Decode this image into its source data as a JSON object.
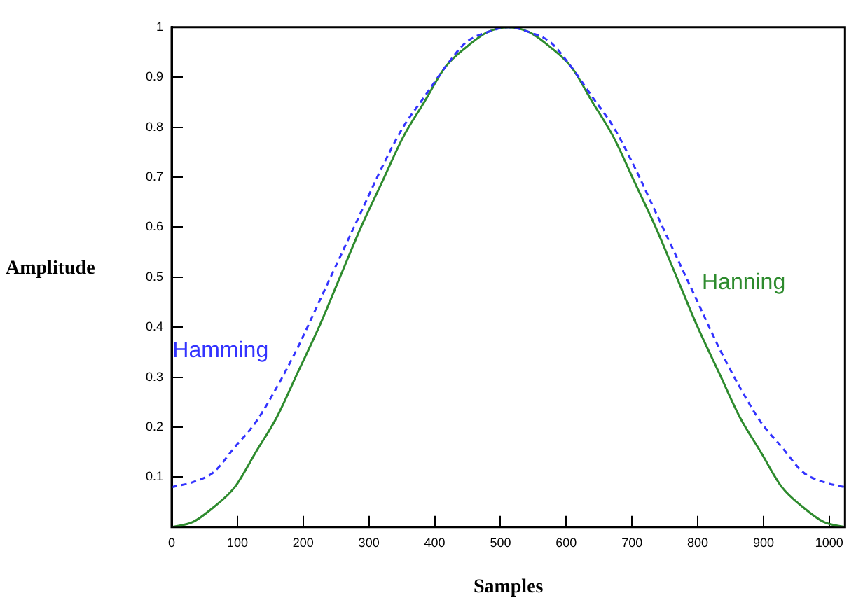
{
  "chart_data": {
    "type": "line",
    "xlabel": "Samples",
    "ylabel": "Amplitude",
    "x": [
      0,
      32,
      64,
      96,
      128,
      160,
      192,
      224,
      256,
      288,
      320,
      352,
      384,
      416,
      448,
      480,
      512,
      544,
      576,
      608,
      640,
      672,
      704,
      736,
      768,
      800,
      832,
      864,
      896,
      928,
      960,
      992,
      1024
    ],
    "series": [
      {
        "name": "Hamming",
        "color": "#3333ff",
        "line_style": "dashed",
        "values": [
          0.08,
          0.09,
          0.11,
          0.16,
          0.21,
          0.28,
          0.36,
          0.45,
          0.54,
          0.63,
          0.72,
          0.8,
          0.86,
          0.92,
          0.97,
          0.99,
          1,
          0.99,
          0.97,
          0.92,
          0.86,
          0.8,
          0.72,
          0.63,
          0.54,
          0.45,
          0.36,
          0.28,
          0.21,
          0.16,
          0.11,
          0.09,
          0.08
        ]
      },
      {
        "name": "Hanning",
        "color": "#2e8b2e",
        "line_style": "solid",
        "values": [
          0,
          0.01,
          0.04,
          0.08,
          0.15,
          0.22,
          0.31,
          0.4,
          0.5,
          0.6,
          0.69,
          0.78,
          0.85,
          0.92,
          0.96,
          0.99,
          1,
          0.99,
          0.96,
          0.92,
          0.85,
          0.78,
          0.69,
          0.6,
          0.5,
          0.4,
          0.31,
          0.22,
          0.15,
          0.08,
          0.04,
          0.01,
          0
        ]
      }
    ],
    "xlim": [
      0,
      1024
    ],
    "xticks": [
      0,
      100,
      200,
      300,
      400,
      500,
      600,
      700,
      800,
      900,
      1000
    ],
    "ylim": [
      0,
      1
    ],
    "yticks": [
      0.1,
      0.2,
      0.3,
      0.4,
      0.5,
      0.6,
      0.7,
      0.8,
      0.9,
      1
    ],
    "grid": false,
    "legend": false,
    "marker": "none"
  }
}
